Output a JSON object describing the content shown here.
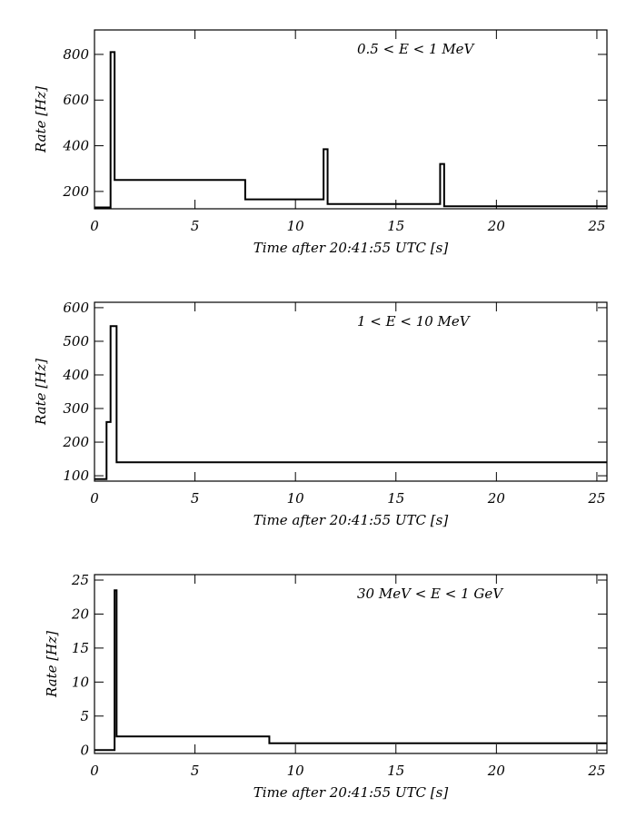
{
  "chart_data": [
    {
      "type": "line",
      "annotation": "0.5 < E < 1 MeV",
      "xlabel": "Time after 20:41:55 UTC [s]",
      "ylabel": "Rate [Hz]",
      "xlim": [
        0,
        25.5
      ],
      "xticks": [
        0,
        5,
        10,
        15,
        20,
        25
      ],
      "ylim": [
        124,
        907
      ],
      "yticks": [
        200,
        400,
        600,
        800
      ],
      "series": [
        {
          "color": "#000000",
          "x": [
            0,
            0.8,
            0.8,
            1.0,
            1.0,
            7.5,
            7.5,
            11.4,
            11.4,
            11.6,
            11.6,
            17.2,
            17.2,
            17.4,
            17.4,
            25.5
          ],
          "values": [
            130,
            130,
            810,
            810,
            250,
            250,
            165,
            165,
            385,
            385,
            145,
            145,
            320,
            320,
            135,
            135
          ]
        }
      ]
    },
    {
      "type": "line",
      "annotation": "1 < E < 10 MeV",
      "xlabel": "Time after 20:41:55 UTC [s]",
      "ylabel": "Rate [Hz]",
      "xlim": [
        0,
        25.5
      ],
      "xticks": [
        0,
        5,
        10,
        15,
        20,
        25
      ],
      "ylim": [
        84,
        616
      ],
      "yticks": [
        100,
        200,
        300,
        400,
        500,
        600
      ],
      "series": [
        {
          "color": "#000000",
          "x": [
            0,
            0.6,
            0.6,
            0.8,
            0.8,
            1.1,
            1.1,
            25.5
          ],
          "values": [
            90,
            90,
            260,
            260,
            545,
            545,
            140,
            140
          ]
        }
      ]
    },
    {
      "type": "line",
      "annotation": "30 MeV < E < 1 GeV",
      "xlabel": "Time after 20:41:55 UTC [s]",
      "ylabel": "Rate [Hz]",
      "xlim": [
        0,
        25.5
      ],
      "xticks": [
        0,
        5,
        10,
        15,
        20,
        25
      ],
      "ylim": [
        -0.5,
        25.8
      ],
      "yticks": [
        0,
        5,
        10,
        15,
        20,
        25
      ],
      "series": [
        {
          "color": "#000000",
          "x": [
            0,
            1.0,
            1.0,
            1.1,
            1.1,
            8.7,
            8.7,
            25.5
          ],
          "values": [
            0,
            0,
            23.5,
            23.5,
            2,
            2,
            1,
            1
          ]
        }
      ]
    }
  ]
}
